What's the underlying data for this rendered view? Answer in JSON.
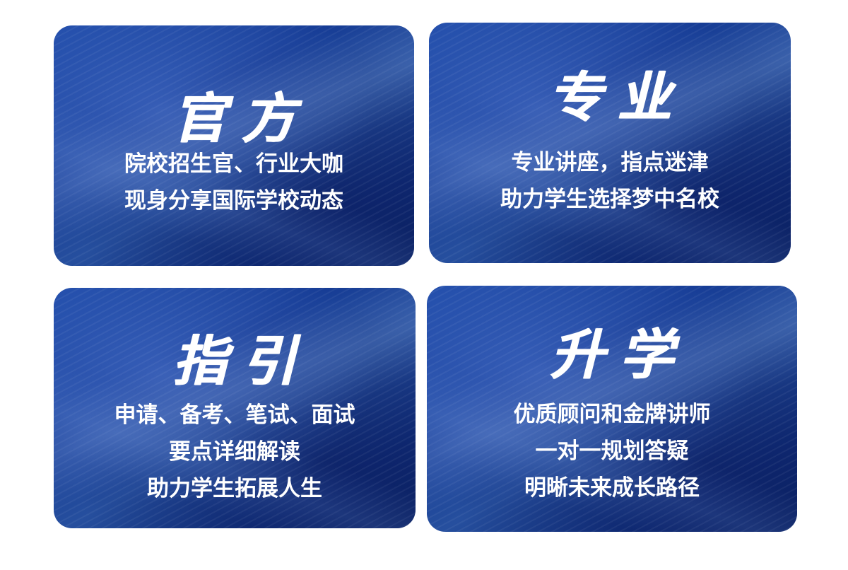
{
  "cards": [
    {
      "title": "官方",
      "lines": [
        "院校招生官、行业大咖",
        "现身分享国际学校动态"
      ]
    },
    {
      "title": "专业",
      "lines": [
        "专业讲座，指点迷津",
        "助力学生选择梦中名校"
      ]
    },
    {
      "title": "指引",
      "lines": [
        "申请、备考、笔试、面试",
        "要点详细解读",
        "助力学生拓展人生"
      ]
    },
    {
      "title": "升学",
      "lines": [
        "优质顾问和金牌讲师",
        "一对一规划答疑",
        "明晰未来成长路径"
      ]
    }
  ],
  "colors": {
    "card_blue": "#163c95",
    "text": "#ffffff",
    "background": "#ffffff"
  }
}
